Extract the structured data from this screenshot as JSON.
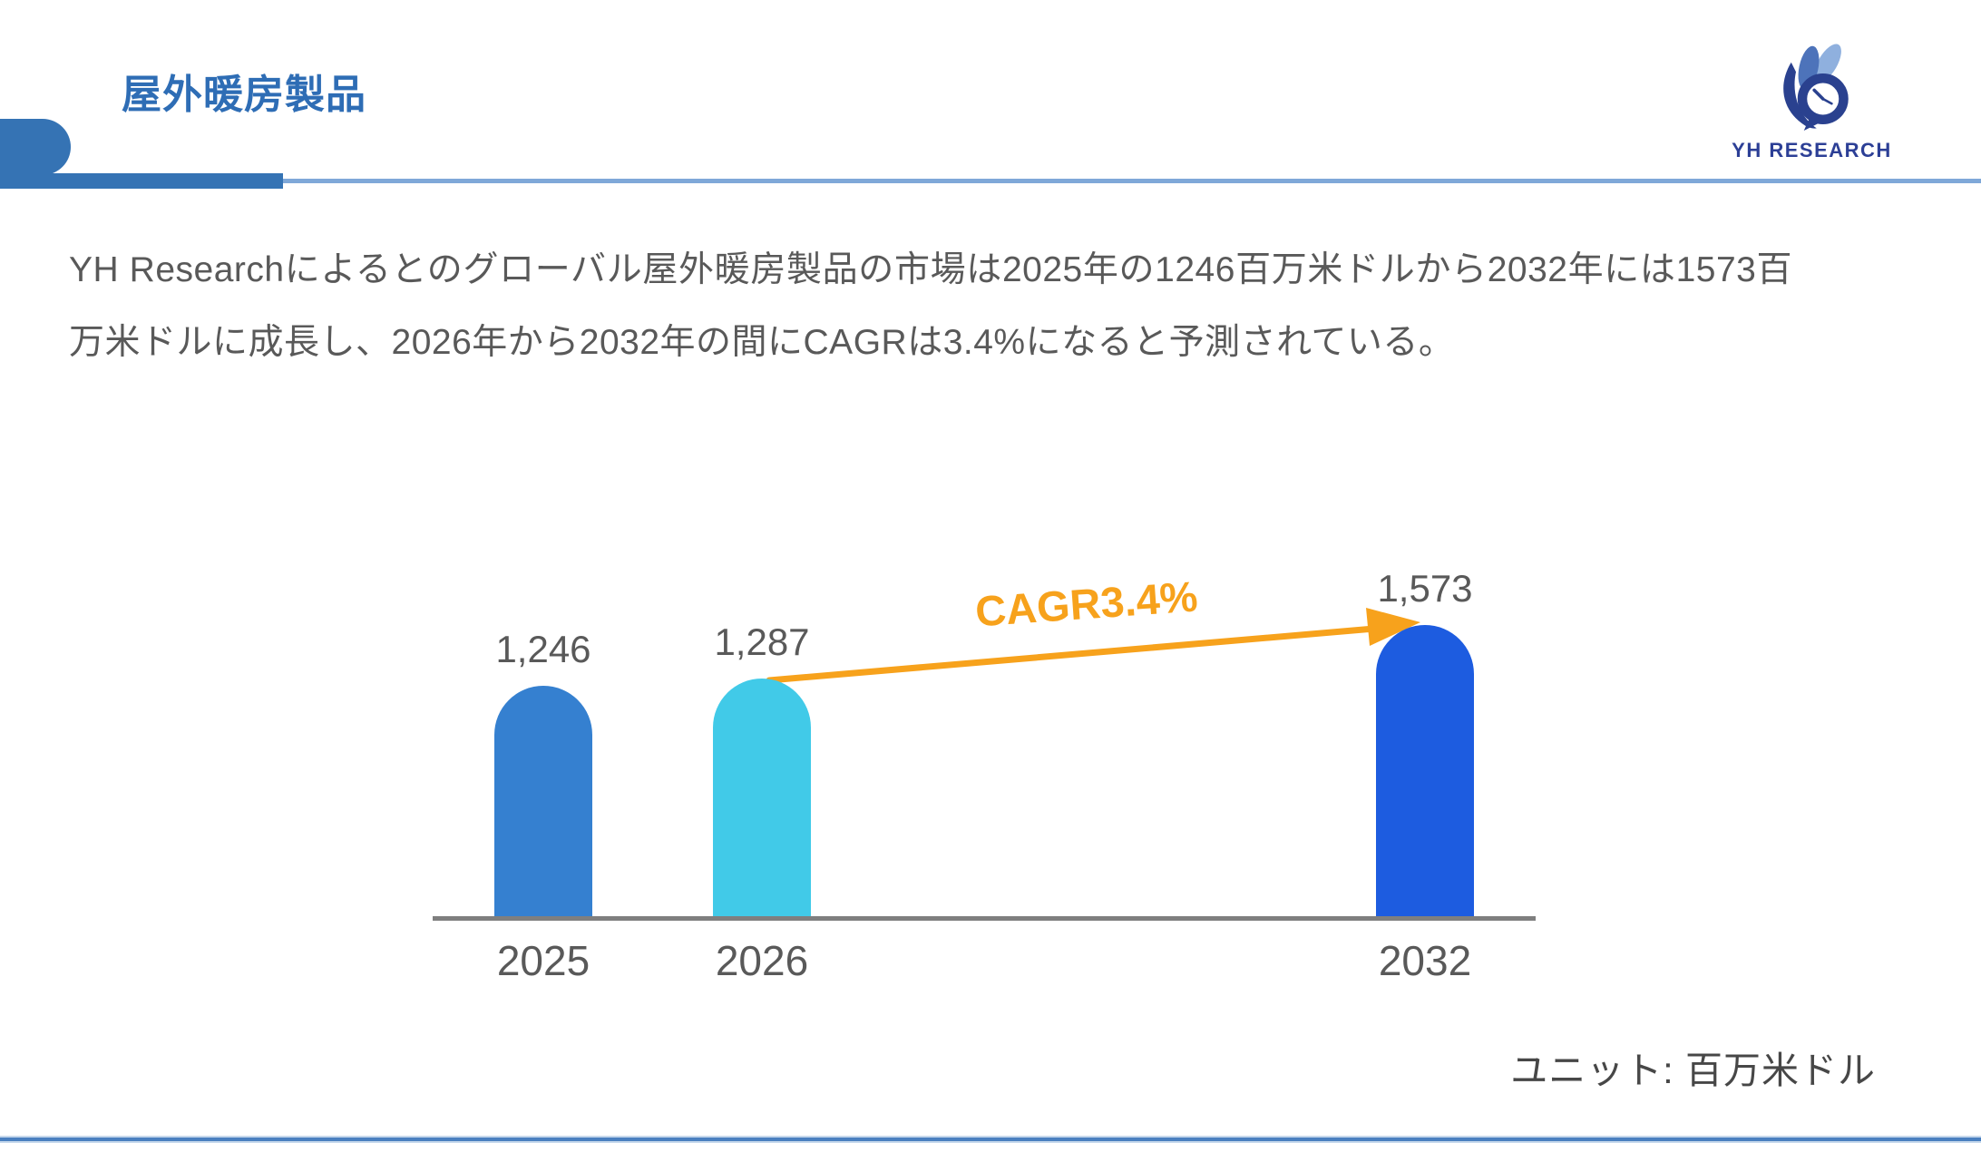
{
  "page": {
    "background": "#ffffff"
  },
  "header": {
    "title": "屋外暖房製品",
    "title_color": "#2e6db5",
    "accent_bar_color": "#3573b4",
    "accent_line_color": "#7fa8d8",
    "logo": {
      "text": "YH RESEARCH",
      "text_color": "#2c3f96",
      "mark_colors": {
        "light": "#8fb0de",
        "medium": "#4d73ba",
        "dark": "#2a418f"
      }
    }
  },
  "summary": {
    "text": "YH Researchによるとのグローバル屋外暖房製品の市場は2025年の1246百万米ドルから2032年には1573百万米ドルに成長し、2026年から2032年の間にCAGRは3.4%になると予測されている。",
    "text_color": "#595959"
  },
  "chart_data": {
    "type": "bar",
    "categories": [
      "2025",
      "2026",
      "2032"
    ],
    "values": [
      1246,
      1287,
      1573
    ],
    "value_labels": [
      "1,246",
      "1,287",
      "1,573"
    ],
    "bar_colors": [
      "#3580d0",
      "#41cae8",
      "#1d5ce0"
    ],
    "annotation": {
      "label": "CAGR3.4%",
      "cagr_percent": 3.4,
      "from_category": "2026",
      "to_category": "2032",
      "color": "#f7a21c"
    },
    "axis_color": "#7f7f7f",
    "label_color": "#595959",
    "ylim": [
      0,
      1650
    ],
    "grid": false,
    "legend": "none",
    "unit_note": "ユニット: 百万米ドル"
  },
  "footer": {
    "rule_color": "#4a80c0"
  }
}
